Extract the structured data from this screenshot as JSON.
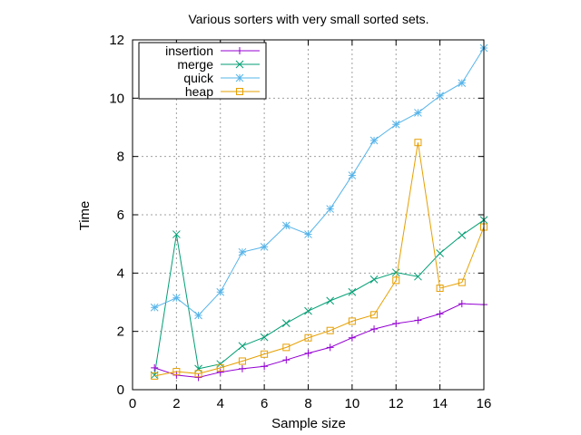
{
  "chart_data": {
    "type": "line",
    "title": "Various sorters with very small sorted sets.",
    "xlabel": "Sample size",
    "ylabel": "Time",
    "xlim": [
      0,
      16
    ],
    "ylim": [
      0,
      12
    ],
    "xticks": [
      "0",
      "2",
      "4",
      "6",
      "8",
      "10",
      "12",
      "14",
      "16"
    ],
    "yticks": [
      "0",
      "2",
      "4",
      "6",
      "8",
      "10",
      "12"
    ],
    "grid": true,
    "legend_position": "top-left",
    "x": [
      1,
      2,
      3,
      4,
      5,
      6,
      7,
      8,
      9,
      10,
      11,
      12,
      13,
      14,
      15,
      16
    ],
    "series": [
      {
        "name": "insertion",
        "color": "#9400d3",
        "marker": "plus",
        "values": [
          0.75,
          0.5,
          0.42,
          0.6,
          0.72,
          0.8,
          1.02,
          1.25,
          1.45,
          1.78,
          2.08,
          2.27,
          2.38,
          2.6,
          2.95,
          2.92
        ]
      },
      {
        "name": "merge",
        "color": "#009e73",
        "marker": "cross",
        "values": [
          0.5,
          5.33,
          0.72,
          0.88,
          1.5,
          1.8,
          2.28,
          2.7,
          3.05,
          3.35,
          3.78,
          4.02,
          3.88,
          4.68,
          5.3,
          5.82
        ]
      },
      {
        "name": "quick",
        "color": "#56b4e9",
        "marker": "star",
        "values": [
          2.82,
          3.15,
          2.55,
          3.35,
          4.72,
          4.9,
          5.63,
          5.33,
          6.2,
          7.35,
          8.55,
          9.1,
          9.5,
          10.08,
          10.52,
          11.72
        ]
      },
      {
        "name": "heap",
        "color": "#e69f00",
        "marker": "square",
        "values": [
          0.47,
          0.62,
          0.55,
          0.75,
          0.98,
          1.22,
          1.45,
          1.78,
          2.03,
          2.35,
          2.57,
          3.75,
          8.48,
          3.48,
          3.68,
          5.58
        ]
      }
    ]
  }
}
